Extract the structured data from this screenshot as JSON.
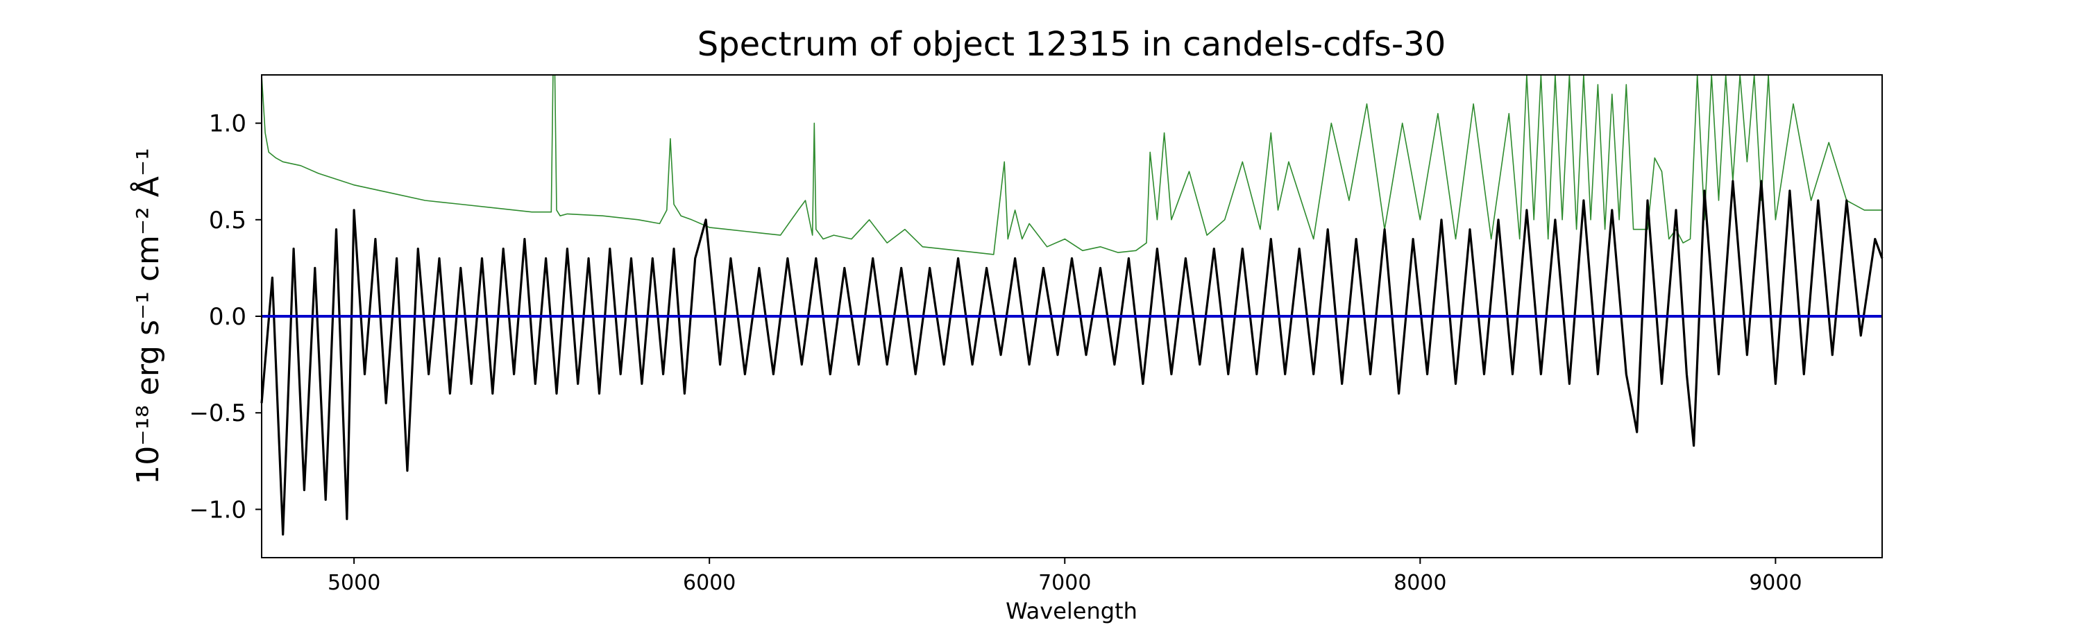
{
  "chart_data": {
    "type": "line",
    "title": "Spectrum of object 12315 in candels-cdfs-30",
    "xlabel": "Wavelength",
    "ylabel": "10⁻¹⁸ erg s⁻¹ cm⁻² Å⁻¹",
    "xlim": [
      4740,
      9300
    ],
    "ylim": [
      -1.25,
      1.25
    ],
    "x_ticks": [
      5000,
      6000,
      7000,
      8000,
      9000
    ],
    "x_tick_labels": [
      "5000",
      "6000",
      "7000",
      "8000",
      "9000"
    ],
    "y_ticks": [
      -1.0,
      -0.5,
      0.0,
      0.5,
      1.0
    ],
    "y_tick_labels": [
      "−1.0",
      "−0.5",
      "0.0",
      "0.5",
      "1.0"
    ],
    "grid": false,
    "legend": "none",
    "series": [
      {
        "role": "flux",
        "color": "#000000",
        "x": [
          4740,
          4770,
          4800,
          4830,
          4860,
          4890,
          4920,
          4950,
          4980,
          5000,
          5030,
          5060,
          5090,
          5120,
          5150,
          5180,
          5210,
          5240,
          5270,
          5300,
          5330,
          5360,
          5390,
          5420,
          5450,
          5480,
          5510,
          5540,
          5570,
          5600,
          5630,
          5660,
          5690,
          5720,
          5750,
          5780,
          5810,
          5840,
          5870,
          5900,
          5930,
          5960,
          5990,
          6030,
          6060,
          6100,
          6140,
          6180,
          6220,
          6260,
          6300,
          6340,
          6380,
          6420,
          6460,
          6500,
          6540,
          6580,
          6620,
          6660,
          6700,
          6740,
          6780,
          6820,
          6860,
          6900,
          6940,
          6980,
          7020,
          7060,
          7100,
          7140,
          7180,
          7220,
          7260,
          7300,
          7340,
          7380,
          7420,
          7460,
          7500,
          7540,
          7580,
          7620,
          7660,
          7700,
          7740,
          7780,
          7820,
          7860,
          7900,
          7940,
          7980,
          8020,
          8060,
          8100,
          8140,
          8180,
          8220,
          8260,
          8300,
          8340,
          8380,
          8420,
          8460,
          8500,
          8540,
          8580,
          8610,
          8640,
          8680,
          8720,
          8750,
          8770,
          8800,
          8840,
          8880,
          8920,
          8960,
          9000,
          9040,
          9080,
          9120,
          9160,
          9200,
          9240,
          9280,
          9300
        ],
        "y": [
          -0.45,
          0.2,
          -1.13,
          0.35,
          -0.9,
          0.25,
          -0.95,
          0.45,
          -1.05,
          0.55,
          -0.3,
          0.4,
          -0.45,
          0.3,
          -0.8,
          0.35,
          -0.3,
          0.3,
          -0.4,
          0.25,
          -0.35,
          0.3,
          -0.4,
          0.35,
          -0.3,
          0.4,
          -0.35,
          0.3,
          -0.4,
          0.35,
          -0.35,
          0.3,
          -0.4,
          0.35,
          -0.3,
          0.3,
          -0.35,
          0.3,
          -0.3,
          0.35,
          -0.4,
          0.3,
          0.5,
          -0.25,
          0.3,
          -0.3,
          0.25,
          -0.3,
          0.3,
          -0.25,
          0.3,
          -0.3,
          0.25,
          -0.25,
          0.3,
          -0.25,
          0.25,
          -0.3,
          0.25,
          -0.25,
          0.3,
          -0.25,
          0.25,
          -0.2,
          0.3,
          -0.25,
          0.25,
          -0.2,
          0.3,
          -0.2,
          0.25,
          -0.25,
          0.3,
          -0.35,
          0.35,
          -0.3,
          0.3,
          -0.25,
          0.35,
          -0.3,
          0.35,
          -0.3,
          0.4,
          -0.3,
          0.35,
          -0.3,
          0.45,
          -0.35,
          0.4,
          -0.3,
          0.45,
          -0.4,
          0.4,
          -0.3,
          0.5,
          -0.35,
          0.45,
          -0.3,
          0.5,
          -0.3,
          0.55,
          -0.3,
          0.5,
          -0.35,
          0.6,
          -0.3,
          0.55,
          -0.3,
          -0.6,
          0.6,
          -0.35,
          0.55,
          -0.3,
          -0.67,
          0.65,
          -0.3,
          0.7,
          -0.2,
          0.7,
          -0.35,
          0.65,
          -0.3,
          0.6,
          -0.2,
          0.6,
          -0.1,
          0.4,
          0.3
        ]
      },
      {
        "role": "error",
        "color": "#2e8b2e",
        "x": [
          4740,
          4750,
          4760,
          4780,
          4800,
          4850,
          4900,
          5000,
          5100,
          5200,
          5300,
          5400,
          5500,
          5555,
          5560,
          5565,
          5570,
          5580,
          5600,
          5700,
          5800,
          5860,
          5880,
          5890,
          5900,
          5920,
          5950,
          6000,
          6050,
          6100,
          6150,
          6200,
          6250,
          6270,
          6290,
          6295,
          6300,
          6320,
          6350,
          6400,
          6450,
          6500,
          6550,
          6600,
          6650,
          6700,
          6750,
          6800,
          6830,
          6840,
          6860,
          6880,
          6900,
          6950,
          7000,
          7050,
          7100,
          7150,
          7200,
          7230,
          7240,
          7260,
          7280,
          7300,
          7350,
          7400,
          7450,
          7500,
          7550,
          7580,
          7600,
          7630,
          7700,
          7750,
          7800,
          7850,
          7900,
          7950,
          8000,
          8050,
          8100,
          8150,
          8200,
          8250,
          8280,
          8300,
          8320,
          8340,
          8360,
          8380,
          8400,
          8420,
          8440,
          8460,
          8480,
          8500,
          8520,
          8540,
          8560,
          8580,
          8600,
          8640,
          8660,
          8680,
          8700,
          8720,
          8740,
          8760,
          8780,
          8800,
          8820,
          8840,
          8860,
          8880,
          8900,
          8920,
          8940,
          8960,
          8980,
          9000,
          9050,
          9100,
          9150,
          9200,
          9250,
          9300
        ],
        "y": [
          1.25,
          0.95,
          0.85,
          0.82,
          0.8,
          0.78,
          0.74,
          0.68,
          0.64,
          0.6,
          0.58,
          0.56,
          0.54,
          0.54,
          1.25,
          1.25,
          0.55,
          0.52,
          0.53,
          0.52,
          0.5,
          0.48,
          0.55,
          0.92,
          0.58,
          0.52,
          0.5,
          0.46,
          0.45,
          0.44,
          0.43,
          0.42,
          0.55,
          0.6,
          0.42,
          1.0,
          0.45,
          0.4,
          0.42,
          0.4,
          0.5,
          0.38,
          0.45,
          0.36,
          0.35,
          0.34,
          0.33,
          0.32,
          0.8,
          0.4,
          0.55,
          0.4,
          0.48,
          0.36,
          0.4,
          0.34,
          0.36,
          0.33,
          0.34,
          0.38,
          0.85,
          0.5,
          0.95,
          0.5,
          0.75,
          0.42,
          0.5,
          0.8,
          0.45,
          0.95,
          0.55,
          0.8,
          0.4,
          1.0,
          0.6,
          1.1,
          0.45,
          1.0,
          0.5,
          1.05,
          0.4,
          1.1,
          0.4,
          1.05,
          0.4,
          1.25,
          0.5,
          1.25,
          0.4,
          1.25,
          0.5,
          1.25,
          0.45,
          1.25,
          0.5,
          1.2,
          0.45,
          1.15,
          0.5,
          1.2,
          0.45,
          0.45,
          0.82,
          0.75,
          0.4,
          0.45,
          0.38,
          0.4,
          1.25,
          0.5,
          1.25,
          0.6,
          1.25,
          0.7,
          1.25,
          0.8,
          1.25,
          0.6,
          1.25,
          0.5,
          1.1,
          0.6,
          0.9,
          0.6,
          0.55,
          0.55
        ]
      },
      {
        "role": "zero",
        "color": "#0000cc",
        "x": [
          4740,
          9300
        ],
        "y": [
          0,
          0
        ]
      }
    ]
  }
}
